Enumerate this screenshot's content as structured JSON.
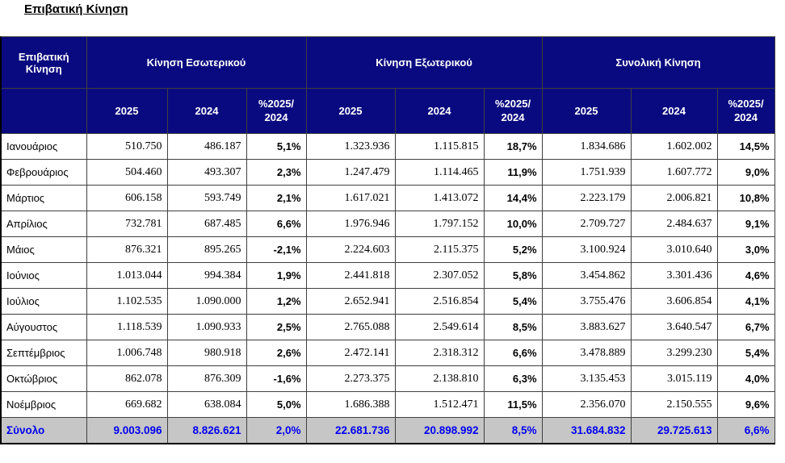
{
  "title": "Επιβατική Κίνηση",
  "colors": {
    "header_bg": "#0a0a80",
    "header_text": "#ffffff",
    "total_row_bg": "#c6c6c6",
    "total_row_text": "#0000f0",
    "grid_border": "#3f3f3f",
    "outer_border": "#000000"
  },
  "table": {
    "corner_label": "Επιβατική Κίνηση",
    "groups": [
      {
        "label": "Κίνηση Εσωτερικού"
      },
      {
        "label": "Κίνηση Εξωτερικού"
      },
      {
        "label": "Συνολική Κίνηση"
      }
    ],
    "sub_headers": [
      "2025",
      "2024",
      "%2025/\n2024"
    ],
    "rows": [
      [
        "Ιανουάριος",
        "510.750",
        "486.187",
        "5,1%",
        "1.323.936",
        "1.115.815",
        "18,7%",
        "1.834.686",
        "1.602.002",
        "14,5%"
      ],
      [
        "Φεβρουάριος",
        "504.460",
        "493.307",
        "2,3%",
        "1.247.479",
        "1.114.465",
        "11,9%",
        "1.751.939",
        "1.607.772",
        "9,0%"
      ],
      [
        "Μάρτιος",
        "606.158",
        "593.749",
        "2,1%",
        "1.617.021",
        "1.413.072",
        "14,4%",
        "2.223.179",
        "2.006.821",
        "10,8%"
      ],
      [
        "Απρίλιος",
        "732.781",
        "687.485",
        "6,6%",
        "1.976.946",
        "1.797.152",
        "10,0%",
        "2.709.727",
        "2.484.637",
        "9,1%"
      ],
      [
        "Μάιος",
        "876.321",
        "895.265",
        "-2,1%",
        "2.224.603",
        "2.115.375",
        "5,2%",
        "3.100.924",
        "3.010.640",
        "3,0%"
      ],
      [
        "Ιούνιος",
        "1.013.044",
        "994.384",
        "1,9%",
        "2.441.818",
        "2.307.052",
        "5,8%",
        "3.454.862",
        "3.301.436",
        "4,6%"
      ],
      [
        "Ιούλιος",
        "1.102.535",
        "1.090.000",
        "1,2%",
        "2.652.941",
        "2.516.854",
        "5,4%",
        "3.755.476",
        "3.606.854",
        "4,1%"
      ],
      [
        "Αύγουστος",
        "1.118.539",
        "1.090.933",
        "2,5%",
        "2.765.088",
        "2.549.614",
        "8,5%",
        "3.883.627",
        "3.640.547",
        "6,7%"
      ],
      [
        "Σεπτέμβριος",
        "1.006.748",
        "980.918",
        "2,6%",
        "2.472.141",
        "2.318.312",
        "6,6%",
        "3.478.889",
        "3.299.230",
        "5,4%"
      ],
      [
        "Οκτώβριος",
        "862.078",
        "876.309",
        "-1,6%",
        "2.273.375",
        "2.138.810",
        "6,3%",
        "3.135.453",
        "3.015.119",
        "4,0%"
      ],
      [
        "Νοέμβριος",
        "669.682",
        "638.084",
        "5,0%",
        "1.686.388",
        "1.512.471",
        "11,5%",
        "2.356.070",
        "2.150.555",
        "9,6%"
      ]
    ],
    "total_row": [
      "Σύνολο",
      "9.003.096",
      "8.826.621",
      "2,0%",
      "22.681.736",
      "20.898.992",
      "8,5%",
      "31.684.832",
      "29.725.613",
      "6,6%"
    ]
  }
}
